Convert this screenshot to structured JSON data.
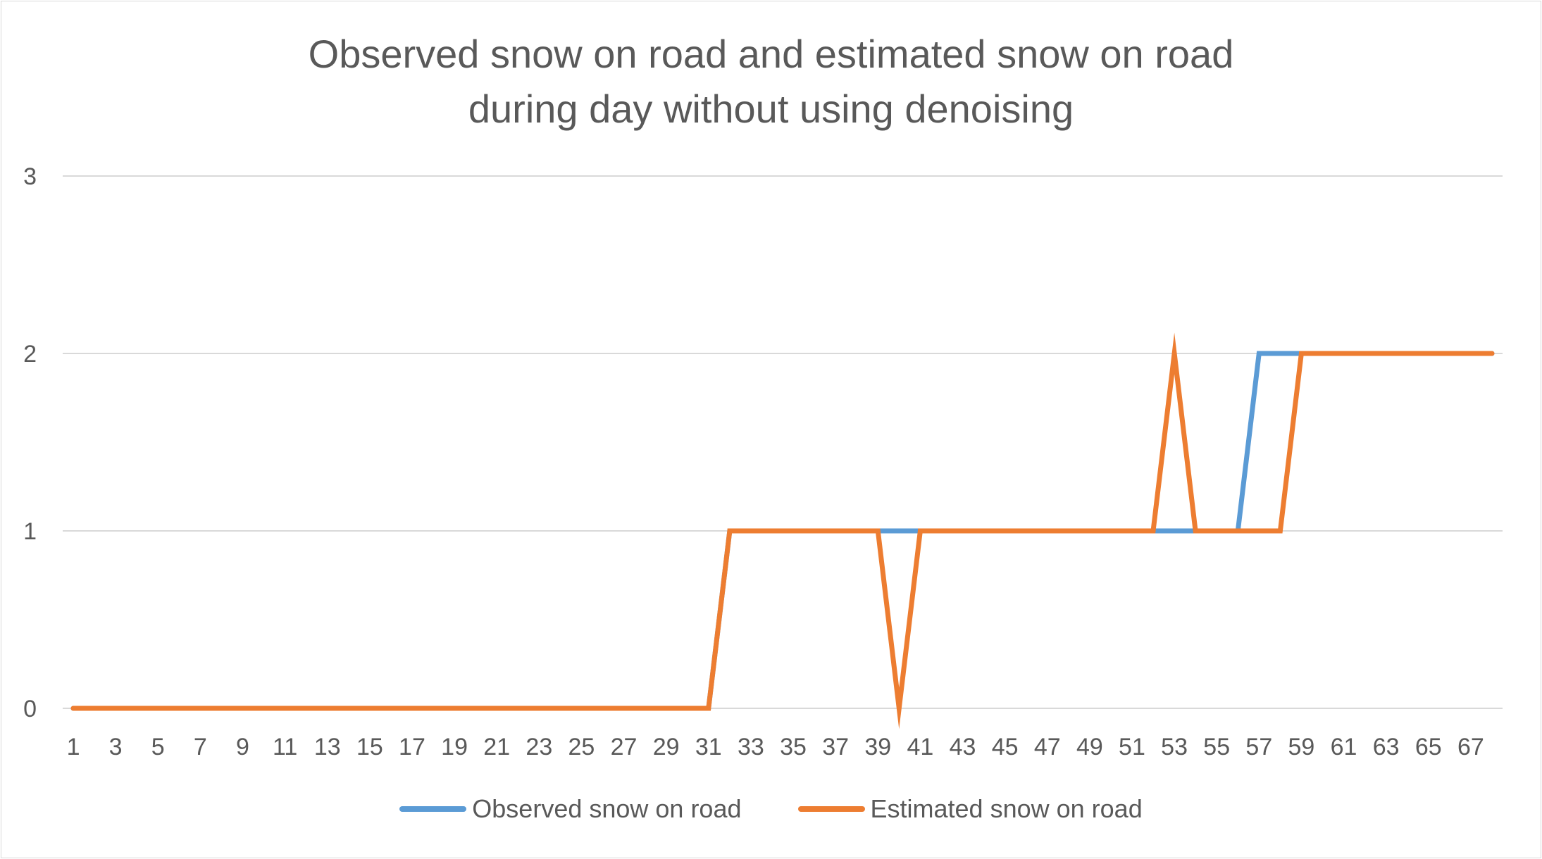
{
  "chart_data": {
    "type": "line",
    "title_lines": [
      "Observed snow on road and estimated snow on road",
      "during day without using denoising"
    ],
    "xlabel": "",
    "ylabel": "",
    "ylim": [
      0,
      3
    ],
    "y_ticks": [
      "0",
      "1",
      "2",
      "3"
    ],
    "x": [
      1,
      2,
      3,
      4,
      5,
      6,
      7,
      8,
      9,
      10,
      11,
      12,
      13,
      14,
      15,
      16,
      17,
      18,
      19,
      20,
      21,
      22,
      23,
      24,
      25,
      26,
      27,
      28,
      29,
      30,
      31,
      32,
      33,
      34,
      35,
      36,
      37,
      38,
      39,
      40,
      41,
      42,
      43,
      44,
      45,
      46,
      47,
      48,
      49,
      50,
      51,
      52,
      53,
      54,
      55,
      56,
      57,
      58,
      59,
      60,
      61,
      62,
      63,
      64,
      65,
      66,
      67,
      68
    ],
    "x_tick_labels": [
      "1",
      "3",
      "5",
      "7",
      "9",
      "11",
      "13",
      "15",
      "17",
      "19",
      "21",
      "23",
      "25",
      "27",
      "29",
      "31",
      "33",
      "35",
      "37",
      "39",
      "41",
      "43",
      "45",
      "47",
      "49",
      "51",
      "53",
      "55",
      "57",
      "59",
      "61",
      "63",
      "65",
      "67"
    ],
    "grid": true,
    "legend_position": "bottom",
    "series": [
      {
        "name": "Observed snow on road",
        "color": "#5b9bd5",
        "values": [
          0,
          0,
          0,
          0,
          0,
          0,
          0,
          0,
          0,
          0,
          0,
          0,
          0,
          0,
          0,
          0,
          0,
          0,
          0,
          0,
          0,
          0,
          0,
          0,
          0,
          0,
          0,
          0,
          0,
          0,
          0,
          1,
          1,
          1,
          1,
          1,
          1,
          1,
          1,
          1,
          1,
          1,
          1,
          1,
          1,
          1,
          1,
          1,
          1,
          1,
          1,
          1,
          1,
          1,
          1,
          1,
          2,
          2,
          2,
          2,
          2,
          2,
          2,
          2,
          2,
          2,
          2,
          2
        ]
      },
      {
        "name": "Estimated snow on road",
        "color": "#ed7d31",
        "values": [
          0,
          0,
          0,
          0,
          0,
          0,
          0,
          0,
          0,
          0,
          0,
          0,
          0,
          0,
          0,
          0,
          0,
          0,
          0,
          0,
          0,
          0,
          0,
          0,
          0,
          0,
          0,
          0,
          0,
          0,
          0,
          1,
          1,
          1,
          1,
          1,
          1,
          1,
          1,
          0,
          1,
          1,
          1,
          1,
          1,
          1,
          1,
          1,
          1,
          1,
          1,
          1,
          2,
          1,
          1,
          1,
          1,
          1,
          2,
          2,
          2,
          2,
          2,
          2,
          2,
          2,
          2,
          2
        ]
      }
    ]
  }
}
